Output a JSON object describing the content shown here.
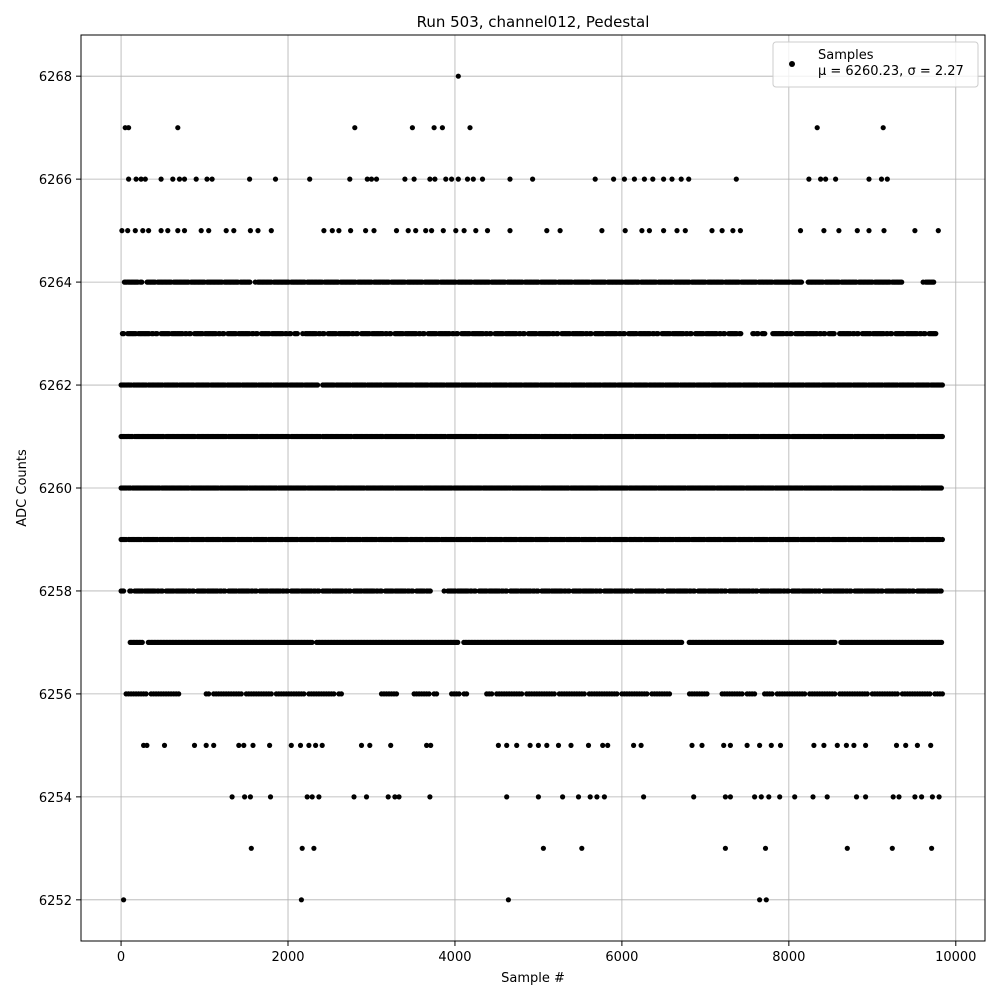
{
  "chart_data": {
    "type": "scatter",
    "title": "Run 503, channel012, Pedestal",
    "xlabel": "Sample #",
    "ylabel": "ADC Counts",
    "xlim": [
      -480,
      10350
    ],
    "ylim": [
      6251.2,
      6268.8
    ],
    "xticks": [
      0,
      2000,
      4000,
      6000,
      8000,
      10000
    ],
    "yticks": [
      6252,
      6254,
      6256,
      6258,
      6260,
      6262,
      6264,
      6266,
      6268
    ],
    "grid": true,
    "legend_position": "top-right",
    "series": [
      {
        "name": "Samples",
        "color": "#000000",
        "points": [
          [
            4040,
            6268
          ],
          [
            50,
            6267
          ],
          [
            90,
            6267
          ],
          [
            680,
            6267
          ],
          [
            2800,
            6267
          ],
          [
            3490,
            6267
          ],
          [
            3750,
            6267
          ],
          [
            3850,
            6267
          ],
          [
            4180,
            6267
          ],
          [
            8340,
            6267
          ],
          [
            9130,
            6267
          ],
          [
            90,
            6266
          ],
          [
            180,
            6266
          ],
          [
            240,
            6266
          ],
          [
            290,
            6266
          ],
          [
            480,
            6266
          ],
          [
            620,
            6266
          ],
          [
            700,
            6266
          ],
          [
            760,
            6266
          ],
          [
            900,
            6266
          ],
          [
            1030,
            6266
          ],
          [
            1090,
            6266
          ],
          [
            1540,
            6266
          ],
          [
            1850,
            6266
          ],
          [
            2260,
            6266
          ],
          [
            2740,
            6266
          ],
          [
            2950,
            6266
          ],
          [
            3000,
            6266
          ],
          [
            3060,
            6266
          ],
          [
            3400,
            6266
          ],
          [
            3510,
            6266
          ],
          [
            3700,
            6266
          ],
          [
            3760,
            6266
          ],
          [
            3890,
            6266
          ],
          [
            3960,
            6266
          ],
          [
            4040,
            6266
          ],
          [
            4150,
            6266
          ],
          [
            4220,
            6266
          ],
          [
            4330,
            6266
          ],
          [
            4660,
            6266
          ],
          [
            4930,
            6266
          ],
          [
            5680,
            6266
          ],
          [
            5900,
            6266
          ],
          [
            6030,
            6266
          ],
          [
            6150,
            6266
          ],
          [
            6270,
            6266
          ],
          [
            6370,
            6266
          ],
          [
            6500,
            6266
          ],
          [
            6600,
            6266
          ],
          [
            6710,
            6266
          ],
          [
            6800,
            6266
          ],
          [
            7370,
            6266
          ],
          [
            8240,
            6266
          ],
          [
            8380,
            6266
          ],
          [
            8440,
            6266
          ],
          [
            8560,
            6266
          ],
          [
            8960,
            6266
          ],
          [
            9110,
            6266
          ],
          [
            9180,
            6266
          ],
          [
            10,
            6265
          ],
          [
            80,
            6265
          ],
          [
            170,
            6265
          ],
          [
            260,
            6265
          ],
          [
            330,
            6265
          ],
          [
            480,
            6265
          ],
          [
            560,
            6265
          ],
          [
            680,
            6265
          ],
          [
            760,
            6265
          ],
          [
            960,
            6265
          ],
          [
            1050,
            6265
          ],
          [
            1260,
            6265
          ],
          [
            1350,
            6265
          ],
          [
            1550,
            6265
          ],
          [
            1640,
            6265
          ],
          [
            1800,
            6265
          ],
          [
            2430,
            6265
          ],
          [
            2530,
            6265
          ],
          [
            2610,
            6265
          ],
          [
            2750,
            6265
          ],
          [
            2930,
            6265
          ],
          [
            3030,
            6265
          ],
          [
            3300,
            6265
          ],
          [
            3440,
            6265
          ],
          [
            3530,
            6265
          ],
          [
            3650,
            6265
          ],
          [
            3720,
            6265
          ],
          [
            3860,
            6265
          ],
          [
            4010,
            6265
          ],
          [
            4110,
            6265
          ],
          [
            4250,
            6265
          ],
          [
            4390,
            6265
          ],
          [
            4660,
            6265
          ],
          [
            5100,
            6265
          ],
          [
            5260,
            6265
          ],
          [
            5760,
            6265
          ],
          [
            6040,
            6265
          ],
          [
            6240,
            6265
          ],
          [
            6330,
            6265
          ],
          [
            6500,
            6265
          ],
          [
            6660,
            6265
          ],
          [
            6760,
            6265
          ],
          [
            7080,
            6265
          ],
          [
            7200,
            6265
          ],
          [
            7330,
            6265
          ],
          [
            7420,
            6265
          ],
          [
            8140,
            6265
          ],
          [
            8420,
            6265
          ],
          [
            8600,
            6265
          ],
          [
            8820,
            6265
          ],
          [
            8960,
            6265
          ],
          [
            9140,
            6265
          ],
          [
            9510,
            6265
          ],
          [
            9790,
            6265
          ],
          [
            30,
            6252
          ],
          [
            2160,
            6252
          ],
          [
            4640,
            6252
          ],
          [
            7650,
            6252
          ],
          [
            7730,
            6252
          ],
          [
            1560,
            6253
          ],
          [
            2170,
            6253
          ],
          [
            2310,
            6253
          ],
          [
            5060,
            6253
          ],
          [
            5520,
            6253
          ],
          [
            7240,
            6253
          ],
          [
            7720,
            6253
          ],
          [
            8700,
            6253
          ],
          [
            9240,
            6253
          ],
          [
            9710,
            6253
          ],
          [
            1330,
            6254
          ],
          [
            1480,
            6254
          ],
          [
            1550,
            6254
          ],
          [
            1790,
            6254
          ],
          [
            2230,
            6254
          ],
          [
            2290,
            6254
          ],
          [
            2370,
            6254
          ],
          [
            2790,
            6254
          ],
          [
            2940,
            6254
          ],
          [
            3200,
            6254
          ],
          [
            3280,
            6254
          ],
          [
            3330,
            6254
          ],
          [
            3700,
            6254
          ],
          [
            4620,
            6254
          ],
          [
            5000,
            6254
          ],
          [
            5290,
            6254
          ],
          [
            5480,
            6254
          ],
          [
            5620,
            6254
          ],
          [
            5700,
            6254
          ],
          [
            5790,
            6254
          ],
          [
            6260,
            6254
          ],
          [
            6860,
            6254
          ],
          [
            7240,
            6254
          ],
          [
            7300,
            6254
          ],
          [
            7590,
            6254
          ],
          [
            7670,
            6254
          ],
          [
            7760,
            6254
          ],
          [
            7890,
            6254
          ],
          [
            8070,
            6254
          ],
          [
            8290,
            6254
          ],
          [
            8460,
            6254
          ],
          [
            8810,
            6254
          ],
          [
            8920,
            6254
          ],
          [
            9250,
            6254
          ],
          [
            9320,
            6254
          ],
          [
            9510,
            6254
          ],
          [
            9590,
            6254
          ],
          [
            9720,
            6254
          ],
          [
            9800,
            6254
          ],
          [
            270,
            6255
          ],
          [
            310,
            6255
          ],
          [
            520,
            6255
          ],
          [
            880,
            6255
          ],
          [
            1020,
            6255
          ],
          [
            1110,
            6255
          ],
          [
            1410,
            6255
          ],
          [
            1470,
            6255
          ],
          [
            1580,
            6255
          ],
          [
            1780,
            6255
          ],
          [
            2040,
            6255
          ],
          [
            2150,
            6255
          ],
          [
            2250,
            6255
          ],
          [
            2330,
            6255
          ],
          [
            2410,
            6255
          ],
          [
            2880,
            6255
          ],
          [
            2980,
            6255
          ],
          [
            3230,
            6255
          ],
          [
            3660,
            6255
          ],
          [
            3710,
            6255
          ],
          [
            4520,
            6255
          ],
          [
            4620,
            6255
          ],
          [
            4740,
            6255
          ],
          [
            4900,
            6255
          ],
          [
            5000,
            6255
          ],
          [
            5100,
            6255
          ],
          [
            5240,
            6255
          ],
          [
            5390,
            6255
          ],
          [
            5600,
            6255
          ],
          [
            5770,
            6255
          ],
          [
            5830,
            6255
          ],
          [
            6140,
            6255
          ],
          [
            6230,
            6255
          ],
          [
            6840,
            6255
          ],
          [
            6960,
            6255
          ],
          [
            7220,
            6255
          ],
          [
            7300,
            6255
          ],
          [
            7500,
            6255
          ],
          [
            7650,
            6255
          ],
          [
            7790,
            6255
          ],
          [
            7900,
            6255
          ],
          [
            8300,
            6255
          ],
          [
            8420,
            6255
          ],
          [
            8580,
            6255
          ],
          [
            8690,
            6255
          ],
          [
            8780,
            6255
          ],
          [
            8920,
            6255
          ],
          [
            9290,
            6255
          ],
          [
            9400,
            6255
          ],
          [
            9540,
            6255
          ],
          [
            9700,
            6255
          ]
        ]
      }
    ],
    "legend": {
      "label": "Samples",
      "stats": "μ = 6260.23, σ = 2.27"
    }
  }
}
